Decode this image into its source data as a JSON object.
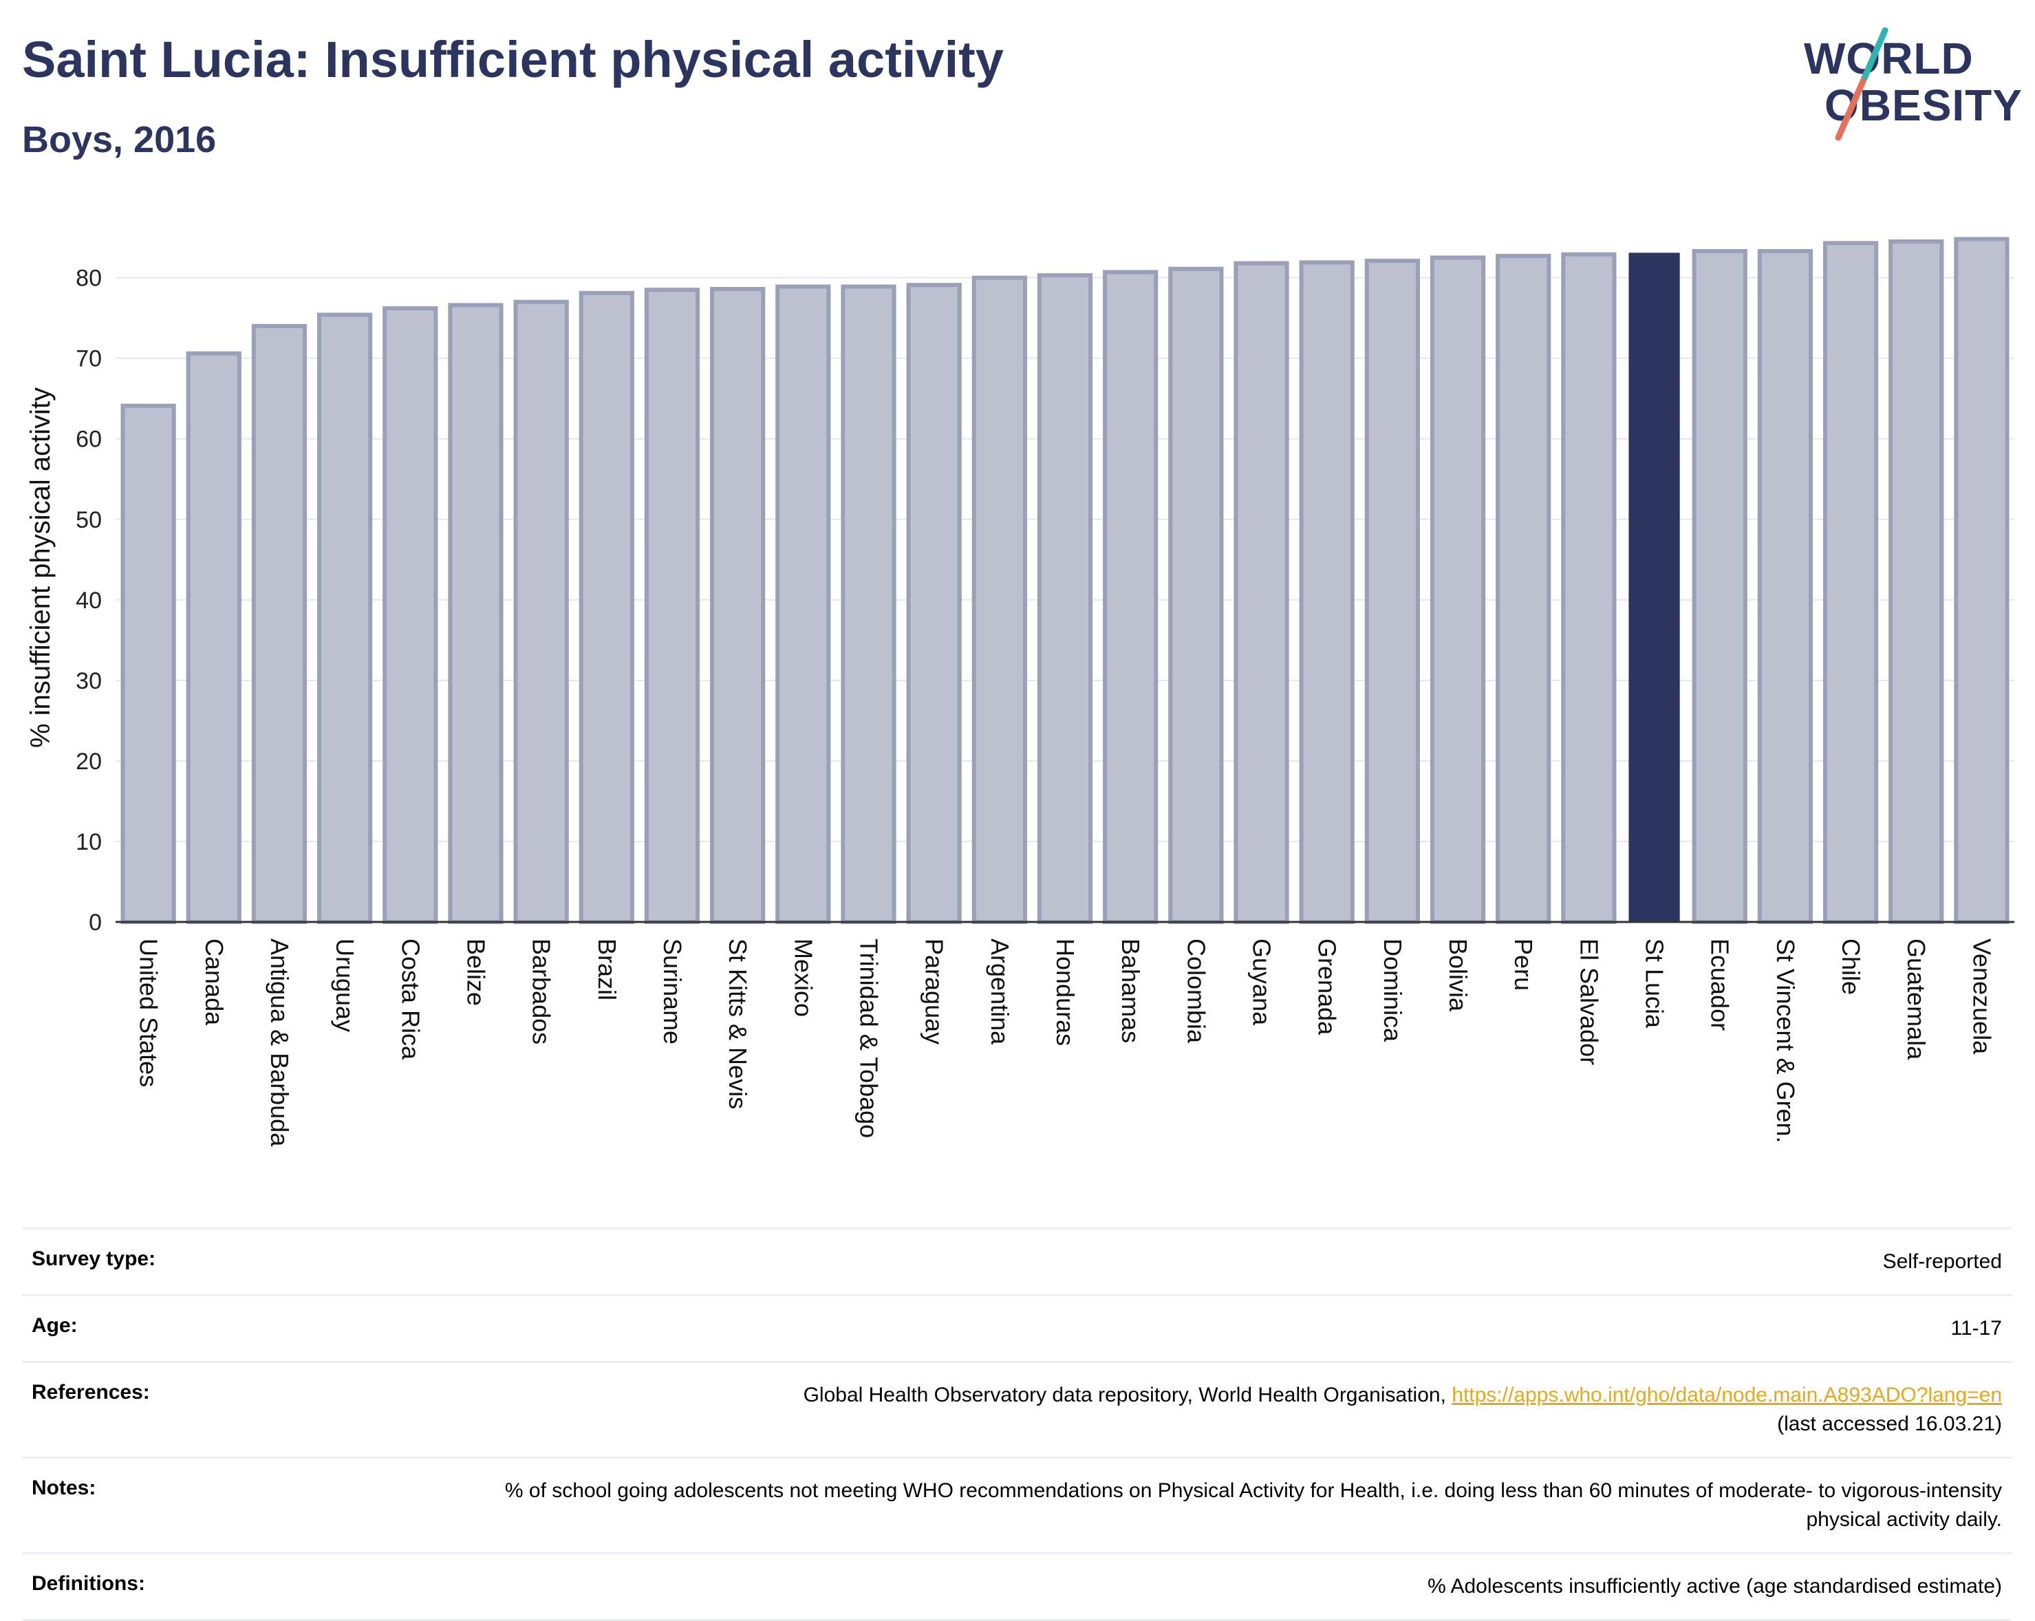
{
  "header": {
    "title": "Saint Lucia: Insufficient physical activity",
    "subtitle": "Boys, 2016"
  },
  "logo": {
    "line1": "WORLD",
    "line2": "OBESITY",
    "accent_teal": "#2fb5b0",
    "accent_coral": "#e8705a"
  },
  "colors": {
    "bar": "#bcc0cf",
    "bar_border": "#9aa0b8",
    "highlight": "#2b3560",
    "grid": "#e5e6ee"
  },
  "chart_data": {
    "type": "bar",
    "ylabel": "% insufficient physical activity",
    "ylim": [
      0,
      88
    ],
    "yticks": [
      0,
      10,
      20,
      30,
      40,
      50,
      60,
      70,
      80
    ],
    "highlight": "St Lucia",
    "categories": [
      "United States",
      "Canada",
      "Antigua & Barbuda",
      "Uruguay",
      "Costa Rica",
      "Belize",
      "Barbados",
      "Brazil",
      "Suriname",
      "St Kitts & Nevis",
      "Mexico",
      "Trinidad & Tobago",
      "Paraguay",
      "Argentina",
      "Honduras",
      "Bahamas",
      "Colombia",
      "Guyana",
      "Grenada",
      "Dominica",
      "Bolivia",
      "Peru",
      "El Salvador",
      "St Lucia",
      "Ecuador",
      "St Vincent & Gren.",
      "Chile",
      "Guatemala",
      "Venezuela"
    ],
    "values": [
      64.1,
      70.6,
      74.0,
      75.4,
      76.2,
      76.6,
      77.0,
      78.1,
      78.5,
      78.6,
      78.9,
      78.9,
      79.1,
      80.0,
      80.3,
      80.7,
      81.1,
      81.8,
      81.9,
      82.1,
      82.5,
      82.7,
      82.9,
      83.1,
      83.3,
      83.3,
      84.3,
      84.5,
      84.8
    ]
  },
  "meta": {
    "survey_label": "Survey type:",
    "survey_value": "Self-reported",
    "age_label": "Age:",
    "age_value": "11-17",
    "references_label": "References:",
    "references_text": "Global Health Observatory data repository, World Health Organisation,",
    "references_link": "https://apps.who.int/gho/data/node.main.A893ADO?lang=en",
    "references_accessed": "(last accessed 16.03.21)",
    "notes_label": "Notes:",
    "notes_value": "% of school going adolescents not meeting WHO recommendations on Physical Activity for Health, i.e. doing less than 60 minutes of moderate- to vigorous-intensity physical activity daily.",
    "definitions_label": "Definitions:",
    "definitions_value": "% Adolescents insufficiently active (age standardised estimate)"
  }
}
